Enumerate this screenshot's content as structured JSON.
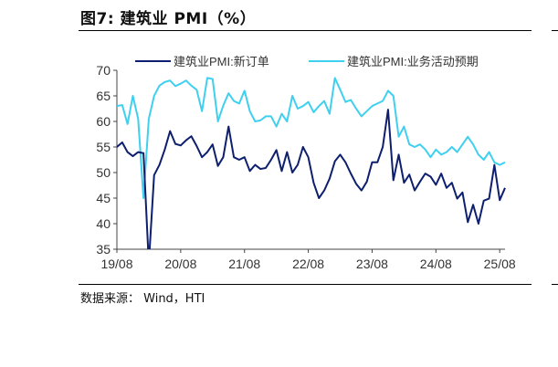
{
  "figure": {
    "title": "图7:  建筑业 PMI（%）",
    "source": "数据来源： Wind，HTI"
  },
  "colors": {
    "series_new_orders": "#0d1f6e",
    "series_expectations": "#3fd0f0",
    "axis": "#444444"
  },
  "chart_data": {
    "type": "line",
    "title": "",
    "xlabel": "",
    "ylabel": "",
    "ylim": [
      35,
      70
    ],
    "yticks": [
      35,
      40,
      45,
      50,
      55,
      60,
      65,
      70
    ],
    "x_tick_labels": [
      "19/08",
      "20/08",
      "21/08",
      "22/08",
      "23/08",
      "24/08",
      "25/08"
    ],
    "legend_position": "top",
    "grid": false,
    "x": [
      "2019-08",
      "2019-09",
      "2019-10",
      "2019-11",
      "2019-12",
      "2020-01",
      "2020-02",
      "2020-03",
      "2020-04",
      "2020-05",
      "2020-06",
      "2020-07",
      "2020-08",
      "2020-09",
      "2020-10",
      "2020-11",
      "2020-12",
      "2021-01",
      "2021-02",
      "2021-03",
      "2021-04",
      "2021-05",
      "2021-06",
      "2021-07",
      "2021-08",
      "2021-09",
      "2021-10",
      "2021-11",
      "2021-12",
      "2022-01",
      "2022-02",
      "2022-03",
      "2022-04",
      "2022-05",
      "2022-06",
      "2022-07",
      "2022-08",
      "2022-09",
      "2022-10",
      "2022-11",
      "2022-12",
      "2023-01",
      "2023-02",
      "2023-03",
      "2023-04",
      "2023-05",
      "2023-06",
      "2023-07",
      "2023-08",
      "2023-09",
      "2023-10",
      "2023-11",
      "2023-12",
      "2024-01",
      "2024-02",
      "2024-03",
      "2024-04",
      "2024-05",
      "2024-06",
      "2024-07",
      "2024-08",
      "2024-09",
      "2024-10",
      "2024-11",
      "2024-12",
      "2025-01",
      "2025-02",
      "2025-03",
      "2025-04",
      "2025-05",
      "2025-06",
      "2025-07",
      "2025-08",
      "2025-09"
    ],
    "series": [
      {
        "name": "建筑业PMI:新订单",
        "values": [
          55.0,
          55.9,
          54.0,
          53.2,
          54.0,
          53.8,
          32.2,
          49.5,
          51.5,
          54.5,
          58.1,
          55.6,
          55.3,
          56.3,
          57.1,
          55.2,
          53.0,
          54.0,
          55.5,
          51.3,
          53.0,
          59.0,
          53.0,
          52.5,
          53.0,
          50.3,
          51.5,
          50.7,
          50.9,
          52.5,
          54.4,
          50.3,
          54.0,
          50.0,
          51.5,
          55.0,
          53.0,
          48.0,
          45.0,
          46.5,
          48.8,
          52.2,
          53.5,
          52.0,
          49.8,
          47.8,
          46.5,
          48.2,
          52.0,
          52.0,
          55.0,
          62.3,
          48.5,
          53.5,
          48.0,
          49.6,
          46.5,
          48.2,
          49.8,
          49.2,
          47.6,
          49.8,
          47.0,
          48.0,
          44.9,
          46.1,
          40.3,
          43.7,
          40.0,
          44.5,
          44.9,
          51.5,
          44.6,
          47.0
        ]
      },
      {
        "name": "建筑业PMI:业务活动预期",
        "values": [
          63.0,
          63.2,
          59.5,
          65.0,
          60.5,
          45.0,
          60.5,
          65.0,
          67.0,
          67.7,
          68.0,
          66.9,
          67.4,
          68.0,
          67.0,
          66.2,
          62.0,
          68.5,
          68.3,
          60.0,
          63.1,
          65.5,
          64.0,
          63.5,
          66.0,
          62.0,
          60.0,
          60.2,
          61.0,
          61.0,
          59.0,
          61.5,
          60.0,
          65.0,
          62.5,
          63.0,
          63.8,
          61.8,
          63.0,
          64.0,
          61.5,
          68.5,
          66.2,
          63.8,
          64.2,
          62.5,
          61.0,
          62.0,
          63.0,
          63.5,
          64.0,
          66.0,
          65.0,
          57.0,
          59.0,
          55.5,
          55.0,
          55.5,
          54.5,
          53.0,
          54.5,
          53.5,
          54.0,
          55.0,
          54.0,
          55.5,
          57.0,
          55.5,
          53.5,
          52.5,
          54.0,
          52.0,
          51.5,
          52.0
        ]
      }
    ]
  }
}
